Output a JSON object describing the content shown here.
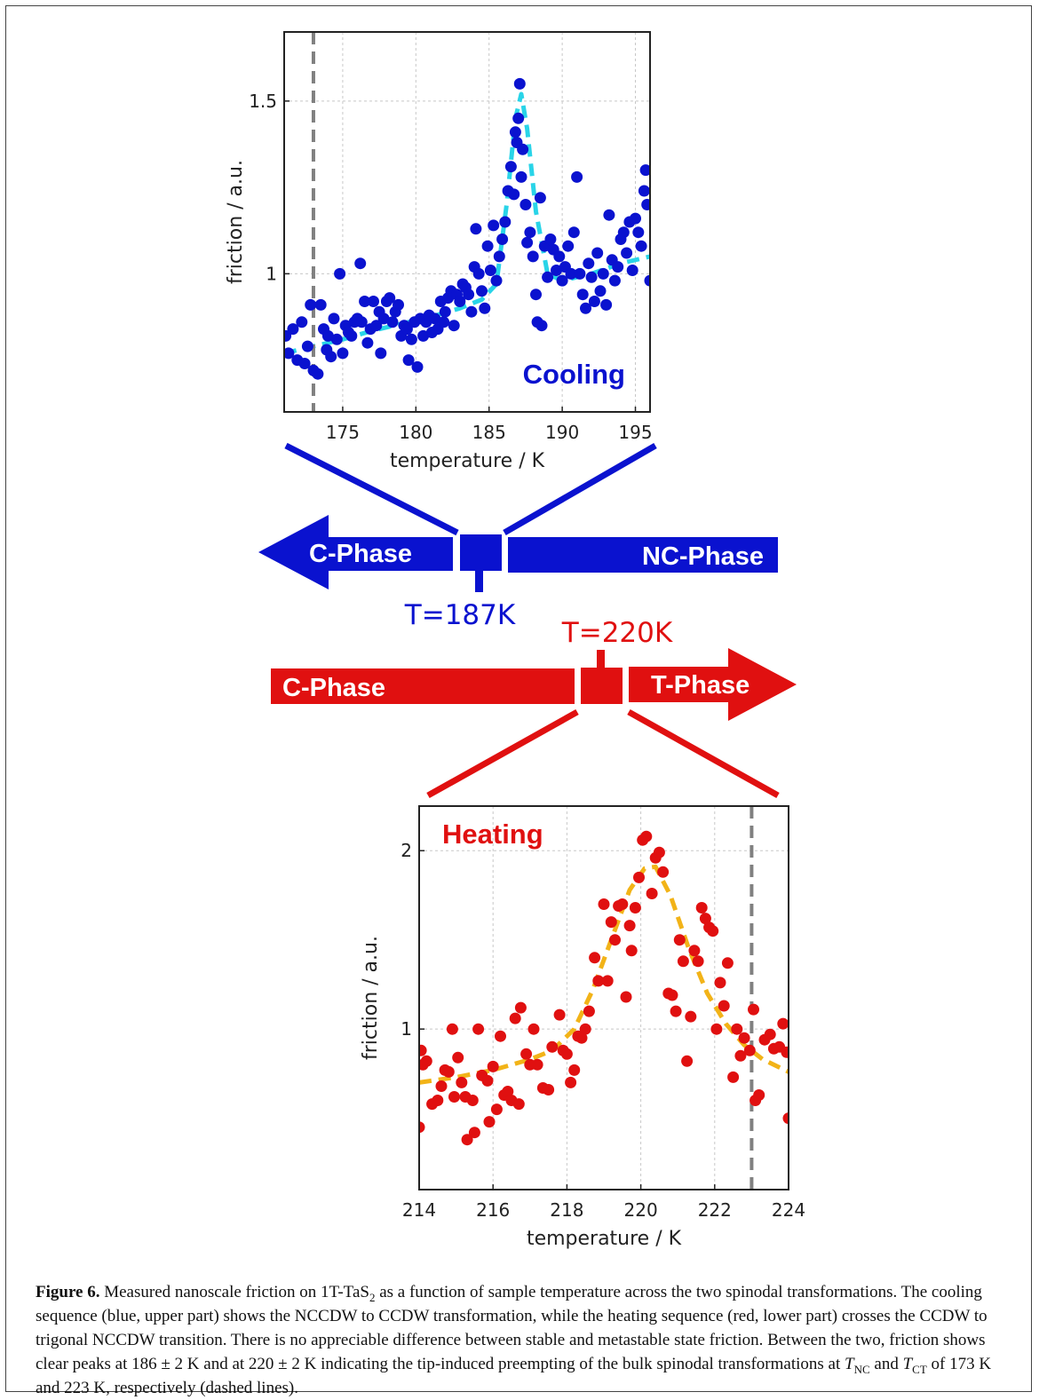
{
  "figure": {
    "caption_label": "Figure 6.",
    "caption_text_1": " Measured nanoscale friction on 1T-TaS",
    "caption_sub_1": "2",
    "caption_text_2": " as a function of sample temperature across the two spinodal transformations. The cooling sequence (blue, upper part) shows the NCCDW to CCDW transformation, while the heating sequence (red, lower part) crosses the CCDW to trigonal NCCDW transition. There is no appreciable difference between stable and metastable state friction. Between the two, friction shows clear peaks at 186 ± 2 K and at 220 ± 2 K indicating the tip-induced preempting of the bulk spinodal transformations at ",
    "caption_tnc_t": "T",
    "caption_tnc_sub": "NC",
    "caption_and": " and ",
    "caption_tct_t": "T",
    "caption_tct_sub": "CT",
    "caption_text_3": " of 173 K and 223 K, respectively (dashed lines)."
  },
  "arrows": {
    "cooling": {
      "left_label": "C-Phase",
      "right_label": "NC-Phase",
      "temp_label": "T=187K",
      "color": "#0a12cf"
    },
    "heating": {
      "left_label": "C-Phase",
      "right_label": "T-Phase",
      "temp_label": "T=220K",
      "color": "#e01010"
    }
  },
  "chart_data": [
    {
      "type": "scatter",
      "panel_label": "Cooling",
      "xlabel": "temperature / K",
      "ylabel": "friction / a.u.",
      "xlim": [
        171,
        196
      ],
      "ylim": [
        0.6,
        1.7
      ],
      "xticks": [
        175,
        180,
        185,
        190,
        195
      ],
      "yticks": [
        1,
        1.5
      ],
      "ytick_labels": [
        "1",
        "1.5"
      ],
      "grid": true,
      "marker_color": "#0a12cf",
      "fit_color": "#29d4e8",
      "vline": 173,
      "fit": [
        [
          171,
          0.77
        ],
        [
          173,
          0.79
        ],
        [
          175,
          0.81
        ],
        [
          177,
          0.835
        ],
        [
          179,
          0.855
        ],
        [
          181,
          0.875
        ],
        [
          183,
          0.9
        ],
        [
          184.5,
          0.925
        ],
        [
          185.5,
          0.97
        ],
        [
          186.2,
          1.2
        ],
        [
          186.8,
          1.45
        ],
        [
          187.2,
          1.52
        ],
        [
          187.6,
          1.42
        ],
        [
          188.2,
          1.18
        ],
        [
          189,
          1.0
        ],
        [
          190,
          0.98
        ],
        [
          192,
          1.0
        ],
        [
          194,
          1.03
        ],
        [
          196,
          1.05
        ]
      ],
      "points": [
        [
          171.1,
          0.82
        ],
        [
          171.3,
          0.77
        ],
        [
          171.6,
          0.84
        ],
        [
          171.9,
          0.75
        ],
        [
          172.2,
          0.86
        ],
        [
          172.4,
          0.74
        ],
        [
          172.6,
          0.79
        ],
        [
          172.8,
          0.91
        ],
        [
          173.0,
          0.72
        ],
        [
          173.3,
          0.71
        ],
        [
          173.5,
          0.91
        ],
        [
          173.7,
          0.84
        ],
        [
          173.9,
          0.78
        ],
        [
          174.0,
          0.82
        ],
        [
          174.2,
          0.76
        ],
        [
          174.4,
          0.87
        ],
        [
          174.6,
          0.81
        ],
        [
          174.8,
          1.0
        ],
        [
          175.0,
          0.77
        ],
        [
          175.2,
          0.85
        ],
        [
          175.4,
          0.83
        ],
        [
          175.6,
          0.82
        ],
        [
          175.8,
          0.86
        ],
        [
          176.0,
          0.87
        ],
        [
          176.2,
          1.03
        ],
        [
          176.3,
          0.86
        ],
        [
          176.5,
          0.92
        ],
        [
          176.7,
          0.8
        ],
        [
          176.9,
          0.84
        ],
        [
          177.1,
          0.92
        ],
        [
          177.3,
          0.85
        ],
        [
          177.5,
          0.89
        ],
        [
          177.6,
          0.77
        ],
        [
          177.8,
          0.87
        ],
        [
          178.0,
          0.92
        ],
        [
          178.2,
          0.93
        ],
        [
          178.4,
          0.86
        ],
        [
          178.6,
          0.89
        ],
        [
          178.8,
          0.91
        ],
        [
          179.0,
          0.82
        ],
        [
          179.2,
          0.85
        ],
        [
          179.4,
          0.84
        ],
        [
          179.5,
          0.75
        ],
        [
          179.7,
          0.81
        ],
        [
          179.9,
          0.86
        ],
        [
          180.1,
          0.73
        ],
        [
          180.3,
          0.87
        ],
        [
          180.5,
          0.82
        ],
        [
          180.7,
          0.86
        ],
        [
          180.9,
          0.88
        ],
        [
          181.1,
          0.83
        ],
        [
          181.3,
          0.87
        ],
        [
          181.5,
          0.84
        ],
        [
          181.7,
          0.92
        ],
        [
          181.9,
          0.86
        ],
        [
          182.0,
          0.89
        ],
        [
          182.2,
          0.93
        ],
        [
          182.4,
          0.95
        ],
        [
          182.6,
          0.85
        ],
        [
          182.8,
          0.94
        ],
        [
          183.0,
          0.92
        ],
        [
          183.2,
          0.97
        ],
        [
          183.4,
          0.96
        ],
        [
          183.6,
          0.94
        ],
        [
          183.8,
          0.89
        ],
        [
          184.0,
          1.02
        ],
        [
          184.1,
          1.13
        ],
        [
          184.3,
          1.0
        ],
        [
          184.5,
          0.95
        ],
        [
          184.7,
          0.9
        ],
        [
          184.9,
          1.08
        ],
        [
          185.1,
          1.01
        ],
        [
          185.3,
          1.14
        ],
        [
          185.5,
          0.98
        ],
        [
          185.7,
          1.05
        ],
        [
          185.9,
          1.1
        ],
        [
          186.1,
          1.15
        ],
        [
          186.3,
          1.24
        ],
        [
          186.5,
          1.31
        ],
        [
          186.7,
          1.23
        ],
        [
          186.8,
          1.41
        ],
        [
          186.9,
          1.38
        ],
        [
          187.0,
          1.45
        ],
        [
          187.1,
          1.55
        ],
        [
          187.2,
          1.28
        ],
        [
          187.3,
          1.36
        ],
        [
          187.5,
          1.2
        ],
        [
          187.6,
          1.09
        ],
        [
          187.8,
          1.12
        ],
        [
          188.0,
          1.05
        ],
        [
          188.2,
          0.94
        ],
        [
          188.3,
          0.86
        ],
        [
          188.5,
          1.22
        ],
        [
          188.6,
          0.85
        ],
        [
          188.8,
          1.08
        ],
        [
          189.0,
          0.99
        ],
        [
          189.2,
          1.1
        ],
        [
          189.4,
          1.07
        ],
        [
          189.6,
          1.01
        ],
        [
          189.8,
          1.05
        ],
        [
          190.0,
          0.98
        ],
        [
          190.2,
          1.02
        ],
        [
          190.4,
          1.08
        ],
        [
          190.6,
          1.0
        ],
        [
          190.8,
          1.12
        ],
        [
          191.0,
          1.28
        ],
        [
          191.2,
          1.0
        ],
        [
          191.4,
          0.94
        ],
        [
          191.6,
          0.9
        ],
        [
          191.8,
          1.03
        ],
        [
          192.0,
          0.99
        ],
        [
          192.2,
          0.92
        ],
        [
          192.4,
          1.06
        ],
        [
          192.6,
          0.95
        ],
        [
          192.8,
          1.0
        ],
        [
          193.0,
          0.91
        ],
        [
          193.2,
          1.17
        ],
        [
          193.4,
          1.04
        ],
        [
          193.6,
          0.98
        ],
        [
          193.8,
          1.02
        ],
        [
          194.0,
          1.1
        ],
        [
          194.2,
          1.12
        ],
        [
          194.4,
          1.06
        ],
        [
          194.6,
          1.15
        ],
        [
          194.8,
          1.01
        ],
        [
          195.0,
          1.16
        ],
        [
          195.2,
          1.12
        ],
        [
          195.4,
          1.08
        ],
        [
          195.6,
          1.24
        ],
        [
          195.7,
          1.3
        ],
        [
          195.8,
          1.2
        ],
        [
          196.0,
          0.98
        ]
      ]
    },
    {
      "type": "scatter",
      "panel_label": "Heating",
      "xlabel": "temperature / K",
      "ylabel": "friction / a.u.",
      "xlim": [
        214,
        224
      ],
      "ylim": [
        0.1,
        2.25
      ],
      "xticks": [
        214,
        216,
        218,
        220,
        222,
        224
      ],
      "yticks": [
        1,
        2
      ],
      "ytick_labels": [
        "1",
        "2"
      ],
      "grid": true,
      "marker_color": "#e01010",
      "fit_color": "#f2b318",
      "vline": 223,
      "fit": [
        [
          214,
          0.7
        ],
        [
          215,
          0.73
        ],
        [
          216,
          0.77
        ],
        [
          217,
          0.83
        ],
        [
          217.6,
          0.88
        ],
        [
          218.2,
          1.0
        ],
        [
          218.7,
          1.22
        ],
        [
          219.2,
          1.5
        ],
        [
          219.7,
          1.78
        ],
        [
          220.1,
          1.9
        ],
        [
          220.4,
          1.91
        ],
        [
          220.8,
          1.75
        ],
        [
          221.3,
          1.45
        ],
        [
          221.8,
          1.2
        ],
        [
          222.3,
          1.03
        ],
        [
          222.8,
          0.91
        ],
        [
          223.3,
          0.83
        ],
        [
          224,
          0.76
        ]
      ],
      "points": [
        [
          214.0,
          0.45
        ],
        [
          214.05,
          0.88
        ],
        [
          214.1,
          0.8
        ],
        [
          214.2,
          0.82
        ],
        [
          214.35,
          0.58
        ],
        [
          214.5,
          0.6
        ],
        [
          214.6,
          0.68
        ],
        [
          214.7,
          0.77
        ],
        [
          214.8,
          0.76
        ],
        [
          214.9,
          1.0
        ],
        [
          214.95,
          0.62
        ],
        [
          215.05,
          0.84
        ],
        [
          215.15,
          0.7
        ],
        [
          215.25,
          0.62
        ],
        [
          215.3,
          0.38
        ],
        [
          215.45,
          0.6
        ],
        [
          215.5,
          0.42
        ],
        [
          215.6,
          1.0
        ],
        [
          215.7,
          0.74
        ],
        [
          215.85,
          0.71
        ],
        [
          215.9,
          0.48
        ],
        [
          216.0,
          0.79
        ],
        [
          216.1,
          0.55
        ],
        [
          216.2,
          0.96
        ],
        [
          216.3,
          0.63
        ],
        [
          216.4,
          0.65
        ],
        [
          216.5,
          0.6
        ],
        [
          216.6,
          1.06
        ],
        [
          216.7,
          0.58
        ],
        [
          216.75,
          1.12
        ],
        [
          216.9,
          0.86
        ],
        [
          217.0,
          0.8
        ],
        [
          217.1,
          1.0
        ],
        [
          217.2,
          0.8
        ],
        [
          217.35,
          0.67
        ],
        [
          217.5,
          0.66
        ],
        [
          217.6,
          0.9
        ],
        [
          217.8,
          1.08
        ],
        [
          217.9,
          0.88
        ],
        [
          218.0,
          0.86
        ],
        [
          218.1,
          0.7
        ],
        [
          218.2,
          0.77
        ],
        [
          218.3,
          0.96
        ],
        [
          218.4,
          0.95
        ],
        [
          218.5,
          1.0
        ],
        [
          218.6,
          1.1
        ],
        [
          218.75,
          1.4
        ],
        [
          218.85,
          1.27
        ],
        [
          219.0,
          1.7
        ],
        [
          219.1,
          1.27
        ],
        [
          219.2,
          1.6
        ],
        [
          219.3,
          1.5
        ],
        [
          219.4,
          1.69
        ],
        [
          219.5,
          1.7
        ],
        [
          219.6,
          1.18
        ],
        [
          219.7,
          1.58
        ],
        [
          219.75,
          1.44
        ],
        [
          219.85,
          1.68
        ],
        [
          219.95,
          1.85
        ],
        [
          220.05,
          2.06
        ],
        [
          220.15,
          2.08
        ],
        [
          220.3,
          1.76
        ],
        [
          220.4,
          1.96
        ],
        [
          220.5,
          1.99
        ],
        [
          220.6,
          1.88
        ],
        [
          220.75,
          1.2
        ],
        [
          220.85,
          1.19
        ],
        [
          220.95,
          1.1
        ],
        [
          221.05,
          1.5
        ],
        [
          221.15,
          1.38
        ],
        [
          221.25,
          0.82
        ],
        [
          221.35,
          1.07
        ],
        [
          221.45,
          1.44
        ],
        [
          221.55,
          1.38
        ],
        [
          221.65,
          1.68
        ],
        [
          221.75,
          1.62
        ],
        [
          221.85,
          1.57
        ],
        [
          221.95,
          1.55
        ],
        [
          222.05,
          1.0
        ],
        [
          222.15,
          1.26
        ],
        [
          222.25,
          1.13
        ],
        [
          222.35,
          1.37
        ],
        [
          222.5,
          0.73
        ],
        [
          222.6,
          1.0
        ],
        [
          222.7,
          0.85
        ],
        [
          222.8,
          0.95
        ],
        [
          222.95,
          0.88
        ],
        [
          223.05,
          1.11
        ],
        [
          223.1,
          0.6
        ],
        [
          223.2,
          0.63
        ],
        [
          223.35,
          0.94
        ],
        [
          223.5,
          0.97
        ],
        [
          223.6,
          0.89
        ],
        [
          223.75,
          0.9
        ],
        [
          223.85,
          1.03
        ],
        [
          223.95,
          0.87
        ],
        [
          224.0,
          0.5
        ]
      ]
    }
  ]
}
